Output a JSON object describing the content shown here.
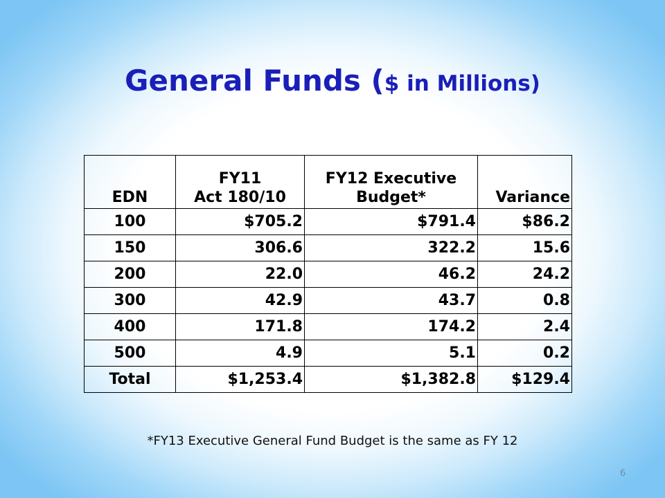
{
  "slide": {
    "title_main": "General Funds (",
    "title_sub": "$ in Millions)",
    "footnote": "*FY13 Executive General Fund Budget is the same as FY 12",
    "page_number": "6"
  },
  "table": {
    "headers": [
      [
        "EDN"
      ],
      [
        "FY11",
        "Act 180/10"
      ],
      [
        "FY12 Executive",
        "Budget*"
      ],
      [
        "Variance"
      ]
    ],
    "rows": [
      [
        "100",
        "$705.2",
        "$791.4",
        "$86.2"
      ],
      [
        "150",
        "306.6",
        "322.2",
        "15.6"
      ],
      [
        "200",
        "22.0",
        "46.2",
        "24.2"
      ],
      [
        "300",
        "42.9",
        "43.7",
        "0.8"
      ],
      [
        "400",
        "171.8",
        "174.2",
        "2.4"
      ],
      [
        "500",
        "4.9",
        "5.1",
        "0.2"
      ],
      [
        "Total",
        "$1,253.4",
        "$1,382.8",
        "$129.4"
      ]
    ]
  }
}
